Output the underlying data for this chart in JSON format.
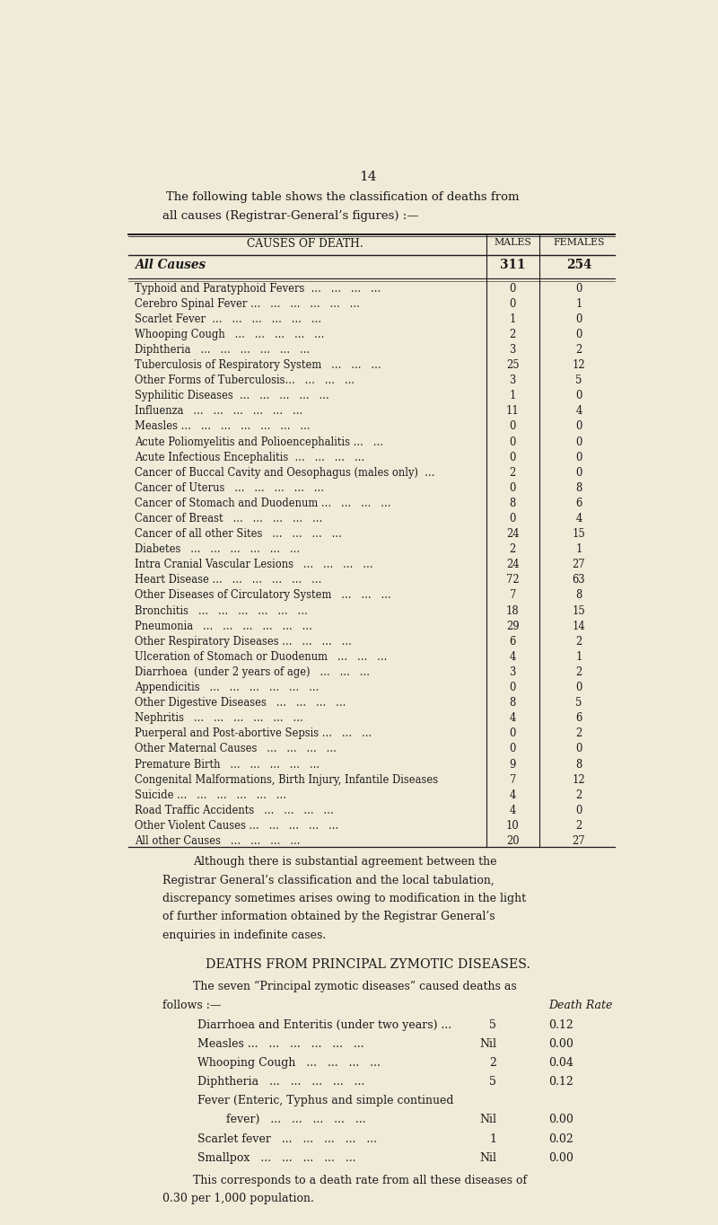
{
  "page_number": "14",
  "bg_color": "#f0ead8",
  "text_color": "#1a1a1a",
  "intro_text_line1": "The following table shows the classification of deaths from",
  "intro_text_line2": "all causes (Registrar-General’s figures) :—",
  "table_header": [
    "CAUSES OF DEATH.",
    "MALES",
    "FEMALES"
  ],
  "all_causes": [
    "All Causes",
    "311",
    "254"
  ],
  "table_rows": [
    [
      "Typhoid and Paratyphoid Fevers  ...   ...   ...   ...",
      "0",
      "0"
    ],
    [
      "Cerebro Spinal Fever ...   ...   ...   ...   ...   ...",
      "0",
      "1"
    ],
    [
      "Scarlet Fever  ...   ...   ...   ...   ...   ...",
      "1",
      "0"
    ],
    [
      "Whooping Cough   ...   ...   ...   ...   ...",
      "2",
      "0"
    ],
    [
      "Diphtheria   ...   ...   ...   ...   ...   ...",
      "3",
      "2"
    ],
    [
      "Tuberculosis of Respiratory System   ...   ...   ...",
      "25",
      "12"
    ],
    [
      "Other Forms of Tuberculosis...   ...   ...   ...",
      "3",
      "5"
    ],
    [
      "Syphilitic Diseases  ...   ...   ...   ...   ...",
      "1",
      "0"
    ],
    [
      "Influenza   ...   ...   ...   ...   ...   ...",
      "11",
      "4"
    ],
    [
      "Measles ...   ...   ...   ...   ...   ...   ...",
      "0",
      "0"
    ],
    [
      "Acute Poliomyelitis and Polioencephalitis ...   ...",
      "0",
      "0"
    ],
    [
      "Acute Infectious Encephalitis  ...   ...   ...   ...",
      "0",
      "0"
    ],
    [
      "Cancer of Buccal Cavity and Oesophagus (males only)  ...",
      "2",
      "0"
    ],
    [
      "Cancer of Uterus   ...   ...   ...   ...   ...",
      "0",
      "8"
    ],
    [
      "Cancer of Stomach and Duodenum ...   ...   ...   ...",
      "8",
      "6"
    ],
    [
      "Cancer of Breast   ...   ...   ...   ...   ...",
      "0",
      "4"
    ],
    [
      "Cancer of all other Sites   ...   ...   ...   ...",
      "24",
      "15"
    ],
    [
      "Diabetes   ...   ...   ...   ...   ...   ...",
      "2",
      "1"
    ],
    [
      "Intra Cranial Vascular Lesions   ...   ...   ...   ...",
      "24",
      "27"
    ],
    [
      "Heart Disease ...   ...   ...   ...   ...   ...",
      "72",
      "63"
    ],
    [
      "Other Diseases of Circulatory System   ...   ...   ...",
      "7",
      "8"
    ],
    [
      "Bronchitis   ...   ...   ...   ...   ...   ...",
      "18",
      "15"
    ],
    [
      "Pneumonia   ...   ...   ...   ...   ...   ...",
      "29",
      "14"
    ],
    [
      "Other Respiratory Diseases ...   ...   ...   ...",
      "6",
      "2"
    ],
    [
      "Ulceration of Stomach or Duodenum   ...   ...   ...",
      "4",
      "1"
    ],
    [
      "Diarrhoea  (under 2 years of age)   ...   ...   ...",
      "3",
      "2"
    ],
    [
      "Appendicitis   ...   ...   ...   ...   ...   ...",
      "0",
      "0"
    ],
    [
      "Other Digestive Diseases   ...   ...   ...   ...",
      "8",
      "5"
    ],
    [
      "Nephritis   ...   ...   ...   ...   ...   ...",
      "4",
      "6"
    ],
    [
      "Puerperal and Post-abortive Sepsis ...   ...   ...",
      "0",
      "2"
    ],
    [
      "Other Maternal Causes   ...   ...   ...   ...",
      "0",
      "0"
    ],
    [
      "Premature Birth   ...   ...   ...   ...   ...",
      "9",
      "8"
    ],
    [
      "Congenital Malformations, Birth Injury, Infantile Diseases",
      "7",
      "12"
    ],
    [
      "Suicide ...   ...   ...   ...   ...   ...",
      "4",
      "2"
    ],
    [
      "Road Traffic Accidents   ...   ...   ...   ...",
      "4",
      "0"
    ],
    [
      "Other Violent Causes ...   ...   ...   ...   ...",
      "10",
      "2"
    ],
    [
      "All other Causes   ...   ...   ...   ...",
      "20",
      "27"
    ]
  ],
  "footnote_lines": [
    "Although there is substantial agreement between the",
    "Registrar General’s classification and the local tabulation,",
    "discrepancy sometimes arises owing to modification in the light",
    "of further information obtained by the Registrar General’s",
    "enquiries in indefinite cases."
  ],
  "section2_title": "DEATHS FROM PRINCIPAL ZYMOTIC DISEASES.",
  "section2_intro_line1": "The seven “Principal zymotic diseases” caused deaths as",
  "section2_intro_line2": "follows :—",
  "death_rate_label": "Death Rate",
  "zymotic_rows": [
    [
      "Diarrhoea and Enteritis (under two years) ...",
      "5",
      "0.12"
    ],
    [
      "Measles ...   ...   ...   ...   ...   ...",
      "Nil",
      "0.00"
    ],
    [
      "Whooping Cough   ...   ...   ...   ...",
      "2",
      "0.04"
    ],
    [
      "Diphtheria   ...   ...   ...   ...   ...",
      "5",
      "0.12"
    ],
    [
      "Fever (Enteric, Typhus and simple continued",
      "",
      ""
    ],
    [
      "        fever)   ...   ...   ...   ...   ...",
      "Nil",
      "0.00"
    ],
    [
      "Scarlet fever   ...   ...   ...   ...   ...",
      "1",
      "0.02"
    ],
    [
      "Smallpox   ...   ...   ...   ...   ...",
      "Nil",
      "0.00"
    ]
  ],
  "final_line1": "This corresponds to a death rate from all these diseases of",
  "final_line2": "0.30 per 1,000 population."
}
